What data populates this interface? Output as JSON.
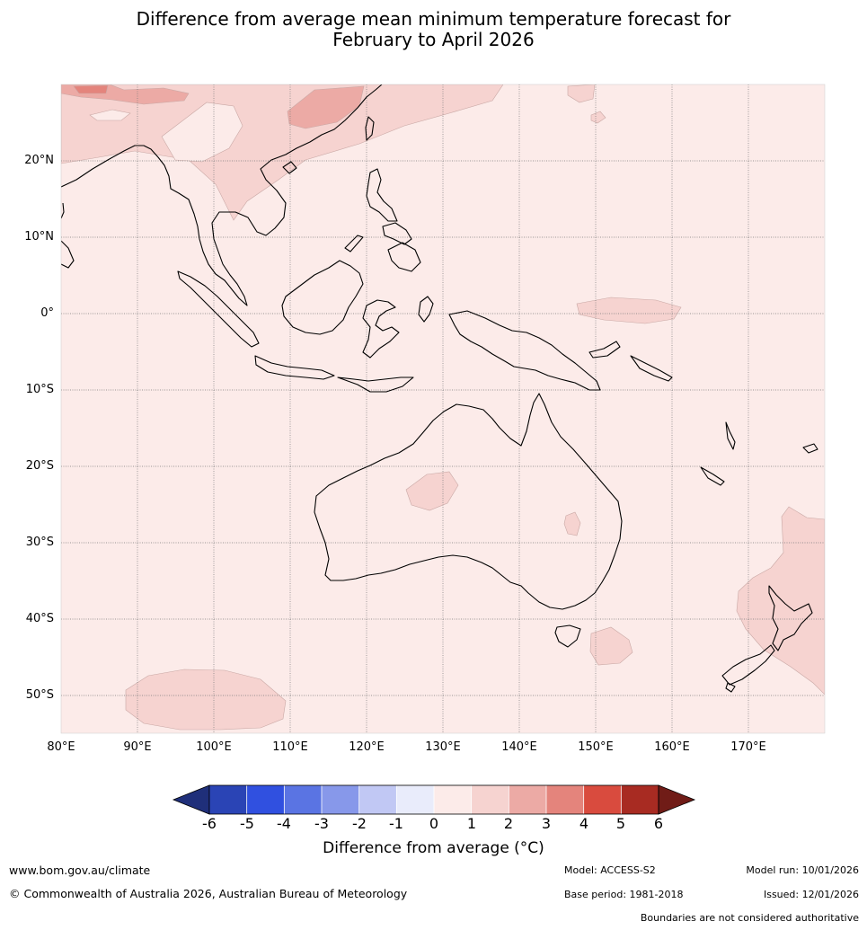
{
  "title": {
    "line1": "Difference from average mean minimum temperature forecast for",
    "line2": "February to April 2026"
  },
  "map": {
    "lat_labels": [
      "20°N",
      "10°N",
      "0°",
      "10°S",
      "20°S",
      "30°S",
      "40°S",
      "50°S"
    ],
    "lon_labels": [
      "80°E",
      "90°E",
      "100°E",
      "110°E",
      "120°E",
      "130°E",
      "140°E",
      "150°E",
      "160°E",
      "170°E"
    ],
    "background_color": "#fcebe9"
  },
  "colorbar": {
    "ticks": [
      "-6",
      "-5",
      "-4",
      "-3",
      "-2",
      "-1",
      "0",
      "1",
      "2",
      "3",
      "4",
      "5",
      "6"
    ],
    "colors": [
      "#1f2f7a",
      "#2a44b5",
      "#3050e0",
      "#5a74e3",
      "#8798ea",
      "#c1c8f4",
      "#e9ecfb",
      "#fcebe9",
      "#f6d3d0",
      "#ecaaa5",
      "#e4847c",
      "#d94b3e",
      "#a82b22",
      "#701c17"
    ],
    "label": "Difference from average (°C)"
  },
  "footer": {
    "website": "www.bom.gov.au/climate",
    "copyright": "© Commonwealth of Australia 2026, Australian Bureau of Meteorology",
    "model": "Model: ACCESS-S2",
    "model_run": "Model run: 10/01/2026",
    "base_period": "Base period: 1981-2018",
    "issued": "Issued: 12/01/2026",
    "disclaimer": "Boundaries are not considered authoritative"
  }
}
